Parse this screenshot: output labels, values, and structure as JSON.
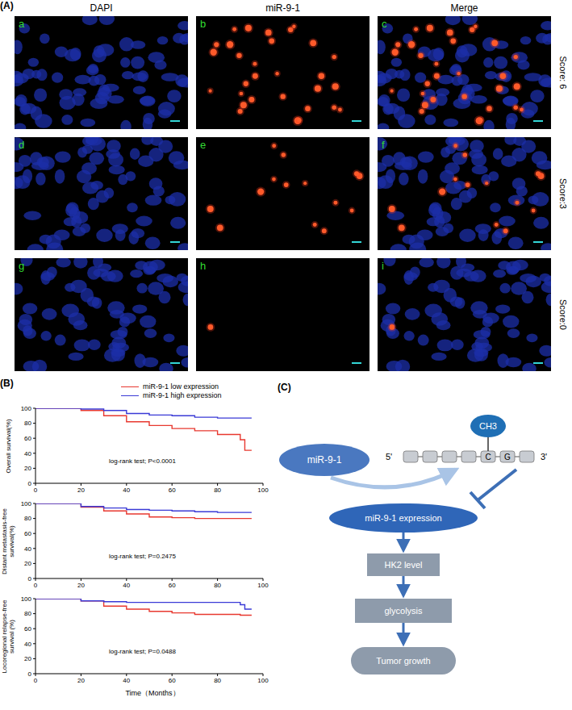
{
  "panels": {
    "A": {
      "panel_label": "(A)",
      "columns": [
        "DAPI",
        "miR-9-1",
        "Merge"
      ],
      "rows": [
        {
          "panels": [
            "a",
            "b",
            "c"
          ],
          "score": "Score: 6"
        },
        {
          "panels": [
            "d",
            "e",
            "f"
          ],
          "score": "Score:3"
        },
        {
          "panels": [
            "g",
            "h",
            "i"
          ],
          "score": "Score:0"
        }
      ]
    },
    "B": {
      "panel_label": "(B)",
      "xlabel": "Time（Months）"
    },
    "C": {
      "panel_label": "(C)",
      "mirna": "miR-9-1",
      "methyl_group": "CH3",
      "strand": {
        "five_prime": "5'",
        "three_prime": "3'",
        "bases": [
          "C",
          "G"
        ]
      },
      "pathway": [
        "miR-9-1 expression",
        "HK2 level",
        "glycolysis",
        "Tumor growth"
      ]
    }
  },
  "chart_data": [
    {
      "type": "line",
      "line_style": "step",
      "legend": "top",
      "ylabel": "Overall survival(%)",
      "annotation": "log-rank test; P<0.0001",
      "xlim": [
        0,
        100
      ],
      "ylim": [
        0,
        100
      ],
      "xticks": [
        0,
        20,
        40,
        60,
        80,
        100
      ],
      "yticks": [
        0,
        20,
        40,
        60,
        80,
        100
      ],
      "x": [
        0,
        10,
        20,
        30,
        40,
        50,
        60,
        70,
        80,
        90,
        92,
        95
      ],
      "series": [
        {
          "name": "miR-9-1 low expression",
          "color": "#e8382f",
          "values": [
            100,
            100,
            97,
            90,
            82,
            77,
            73,
            70,
            65,
            58,
            44,
            44
          ]
        },
        {
          "name": "miR-9-1 high expression",
          "color": "#3a3ad6",
          "values": [
            100,
            100,
            99,
            97,
            93,
            91,
            90,
            88,
            87,
            87,
            87,
            87
          ]
        }
      ]
    },
    {
      "type": "line",
      "line_style": "step",
      "ylabel": "Distant metastasis-free survival(%)",
      "annotation": "log-rank test; P=0.2475",
      "xlim": [
        0,
        100
      ],
      "ylim": [
        0,
        100
      ],
      "xticks": [
        0,
        20,
        40,
        60,
        80,
        100
      ],
      "yticks": [
        0,
        20,
        40,
        60,
        80,
        100
      ],
      "x": [
        0,
        10,
        20,
        30,
        40,
        50,
        60,
        70,
        80,
        90,
        92,
        95
      ],
      "series": [
        {
          "color": "#e8382f",
          "values": [
            100,
            100,
            95,
            90,
            86,
            82,
            81,
            80,
            80,
            80,
            80,
            80
          ]
        },
        {
          "color": "#3a3ad6",
          "values": [
            100,
            100,
            96,
            94,
            92,
            91,
            90,
            89,
            88,
            88,
            88,
            88
          ]
        }
      ]
    },
    {
      "type": "line",
      "line_style": "step",
      "ylabel": "Locoregional relapse-free survival (%)",
      "annotation": "log-rank test; P=0.0488",
      "xlim": [
        0,
        100
      ],
      "ylim": [
        0,
        100
      ],
      "xticks": [
        0,
        20,
        40,
        60,
        80,
        100
      ],
      "yticks": [
        0,
        20,
        40,
        60,
        80,
        100
      ],
      "x": [
        0,
        10,
        20,
        30,
        40,
        50,
        60,
        70,
        80,
        90,
        92,
        95
      ],
      "series": [
        {
          "color": "#e8382f",
          "values": [
            100,
            100,
            97,
            90,
            86,
            83,
            81,
            79,
            79,
            78,
            78,
            78
          ]
        },
        {
          "color": "#3a3ad6",
          "values": [
            100,
            100,
            97,
            96,
            95,
            95,
            95,
            95,
            95,
            92,
            86,
            86
          ]
        }
      ]
    }
  ]
}
